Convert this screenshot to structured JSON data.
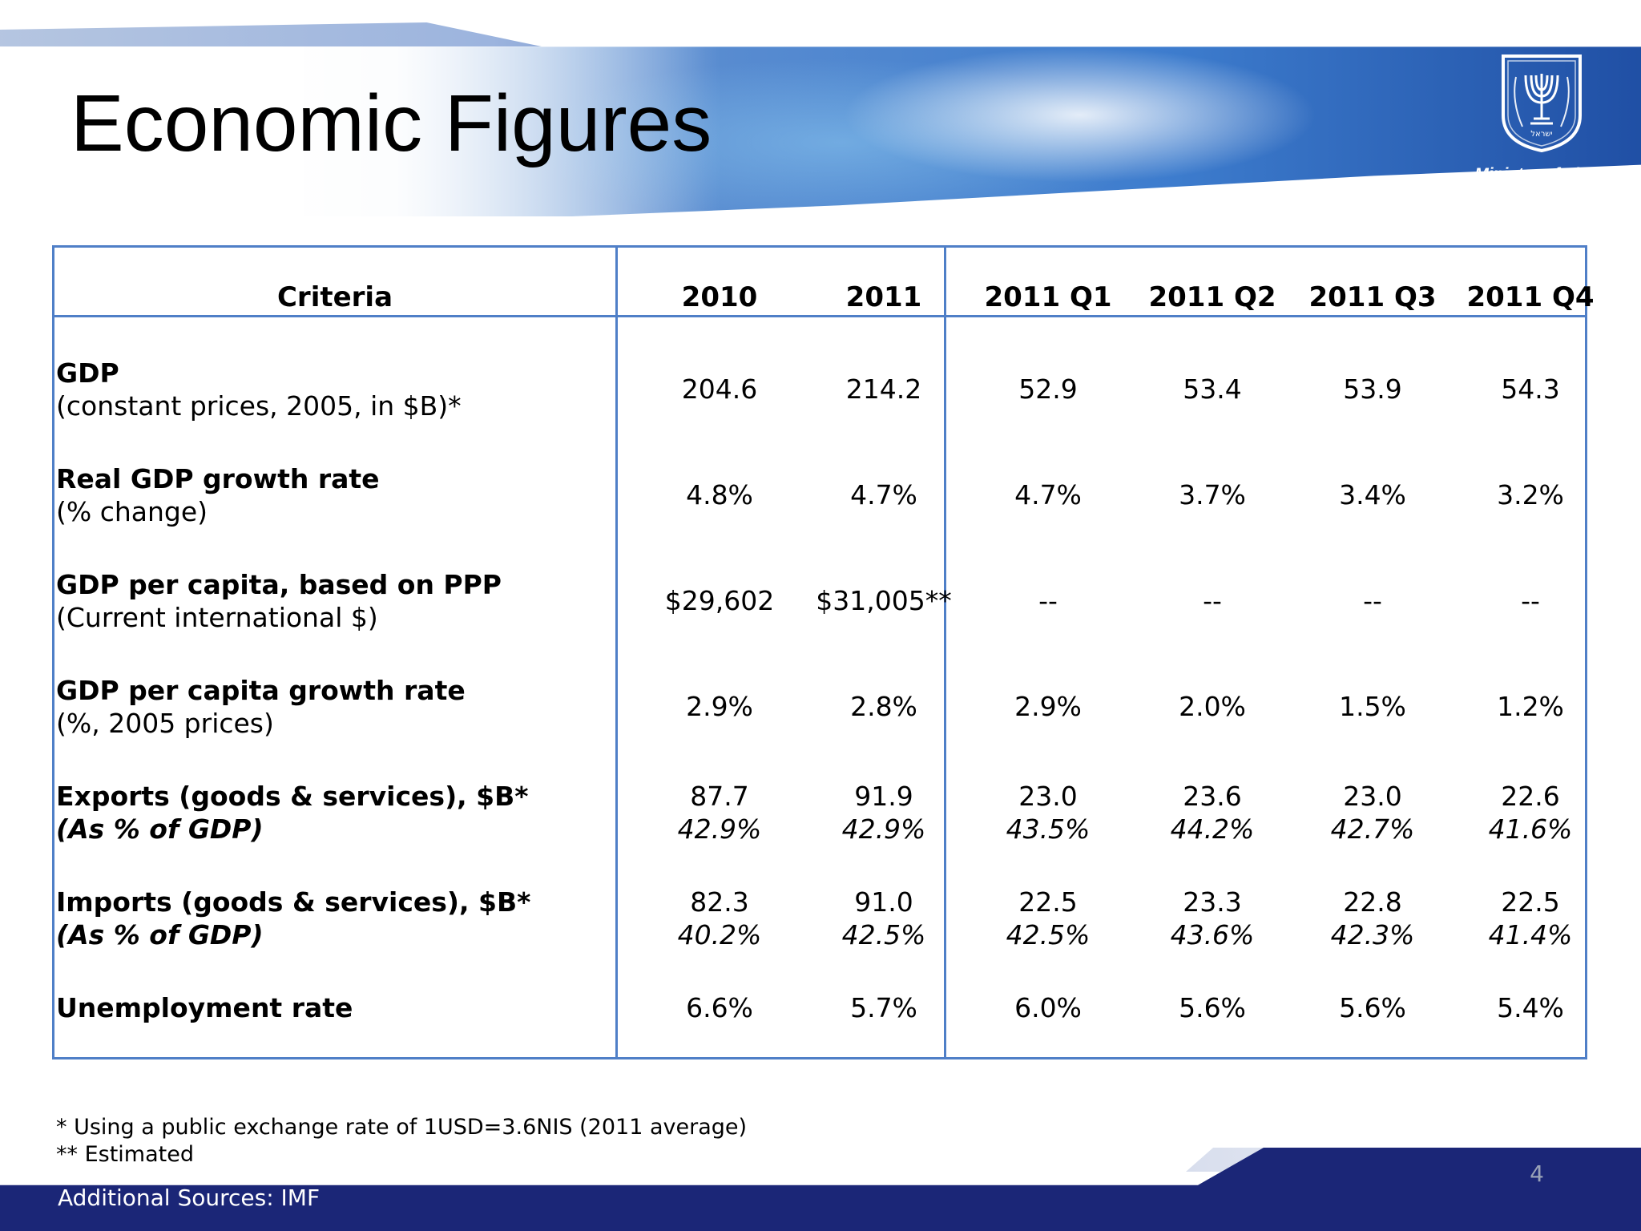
{
  "title": "Economic Figures",
  "logo": {
    "caption": "Ministry of Finance",
    "hebrew_text": "ישראל"
  },
  "table": {
    "headers": [
      "Criteria",
      "2010",
      "2011",
      "2011 Q1",
      "2011 Q2",
      "2011 Q3",
      "2011 Q4"
    ],
    "rows": [
      {
        "name": "GDP",
        "sub": "(constant prices, 2005, in $B)*",
        "values": [
          "204.6",
          "214.2",
          "52.9",
          "53.4",
          "53.9",
          "54.3"
        ],
        "pcts": []
      },
      {
        "name": "Real GDP growth rate",
        "sub": "(% change)",
        "values": [
          "4.8%",
          "4.7%",
          "4.7%",
          "3.7%",
          "3.4%",
          "3.2%"
        ],
        "pcts": []
      },
      {
        "name": "GDP per capita, based on PPP",
        "sub": "(Current international $)",
        "values": [
          "$29,602",
          "$31,005**",
          "--",
          "--",
          "--",
          "--"
        ],
        "pcts": []
      },
      {
        "name": "GDP per capita growth rate",
        "sub": "(%, 2005 prices)",
        "values": [
          "2.9%",
          "2.8%",
          "2.9%",
          "2.0%",
          "1.5%",
          "1.2%"
        ],
        "pcts": []
      },
      {
        "name": "Exports (goods & services), $B*",
        "sub": "(As % of GDP)",
        "values": [
          "87.7",
          "91.9",
          "23.0",
          "23.6",
          "23.0",
          "22.6"
        ],
        "pcts": [
          "42.9%",
          "42.9%",
          "43.5%",
          "44.2%",
          "42.7%",
          "41.6%"
        ]
      },
      {
        "name": "Imports (goods & services), $B*",
        "sub": "(As % of GDP)",
        "values": [
          "82.3",
          "91.0",
          "22.5",
          "23.3",
          "22.8",
          "22.5"
        ],
        "pcts": [
          "40.2%",
          "42.5%",
          "42.5%",
          "43.6%",
          "42.3%",
          "41.4%"
        ]
      },
      {
        "name": "Unemployment rate",
        "sub": "",
        "values": [
          "6.6%",
          "5.7%",
          "6.0%",
          "5.6%",
          "5.6%",
          "5.4%"
        ],
        "pcts": []
      }
    ]
  },
  "footnotes": [
    "* Using a public exchange rate of 1USD=3.6NIS (2011 average)",
    "** Estimated"
  ],
  "sources": "Additional Sources: IMF",
  "page_number": "4",
  "colors": {
    "table_border": "#4f7fc7",
    "footer_bar": "#1b2677",
    "banner_blue": "#2a55a8"
  }
}
